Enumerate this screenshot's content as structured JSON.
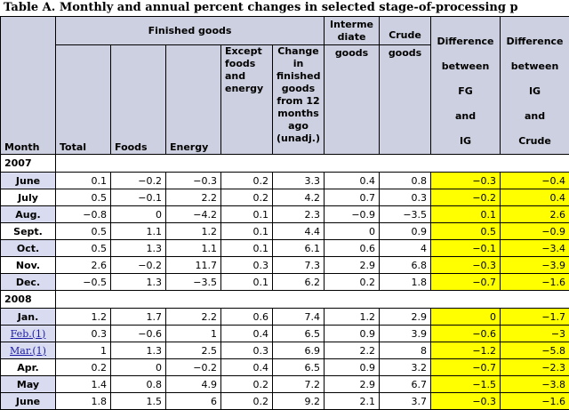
{
  "title": "Table A. Monthly and annual percent changes in selected stage-of-processing p",
  "headers": {
    "month": "Month",
    "finished_goods_group": "Finished goods",
    "total": "Total",
    "foods": "Foods",
    "energy": "Energy",
    "except": "Except foods and energy",
    "change12": "Change in finished goods from 12 months ago (unadj.)",
    "intermediate_top": "Interme diate",
    "intermediate_bottom": "goods",
    "crude_top": "Crude",
    "crude_bottom": "goods",
    "diff_fg_ig": [
      "Difference",
      "between",
      "FG",
      "and",
      "IG"
    ],
    "diff_ig_crude": [
      "Difference",
      "between",
      "IG",
      "and",
      "Crude"
    ]
  },
  "sections": [
    {
      "year": "2007",
      "rows": [
        {
          "month": "June",
          "link": false,
          "values": [
            "0.1",
            "−0.2",
            "−0.3",
            "0.2",
            "3.3",
            "0.4",
            "0.8",
            "−0.3",
            "−0.4"
          ]
        },
        {
          "month": "July",
          "link": false,
          "values": [
            "0.5",
            "−0.1",
            "2.2",
            "0.2",
            "4.2",
            "0.7",
            "0.3",
            "−0.2",
            "0.4"
          ]
        },
        {
          "month": "Aug.",
          "link": false,
          "values": [
            "−0.8",
            "0",
            "−4.2",
            "0.1",
            "2.3",
            "−0.9",
            "−3.5",
            "0.1",
            "2.6"
          ]
        },
        {
          "month": "Sept.",
          "link": false,
          "values": [
            "0.5",
            "1.1",
            "1.2",
            "0.1",
            "4.4",
            "0",
            "0.9",
            "0.5",
            "−0.9"
          ]
        },
        {
          "month": "Oct.",
          "link": false,
          "values": [
            "0.5",
            "1.3",
            "1.1",
            "0.1",
            "6.1",
            "0.6",
            "4",
            "−0.1",
            "−3.4"
          ]
        },
        {
          "month": "Nov.",
          "link": false,
          "values": [
            "2.6",
            "−0.2",
            "11.7",
            "0.3",
            "7.3",
            "2.9",
            "6.8",
            "−0.3",
            "−3.9"
          ]
        },
        {
          "month": "Dec.",
          "link": false,
          "values": [
            "−0.5",
            "1.3",
            "−3.5",
            "0.1",
            "6.2",
            "0.2",
            "1.8",
            "−0.7",
            "−1.6"
          ]
        }
      ]
    },
    {
      "year": "2008",
      "rows": [
        {
          "month": "Jan.",
          "link": false,
          "values": [
            "1.2",
            "1.7",
            "2.2",
            "0.6",
            "7.4",
            "1.2",
            "2.9",
            "0",
            "−1.7"
          ]
        },
        {
          "month": "Feb.(1)",
          "link": true,
          "values": [
            "0.3",
            "−0.6",
            "1",
            "0.4",
            "6.5",
            "0.9",
            "3.9",
            "−0.6",
            "−3"
          ]
        },
        {
          "month": "Mar.(1)",
          "link": true,
          "values": [
            "1",
            "1.3",
            "2.5",
            "0.3",
            "6.9",
            "2.2",
            "8",
            "−1.2",
            "−5.8"
          ]
        },
        {
          "month": "Apr.",
          "link": false,
          "values": [
            "0.2",
            "0",
            "−0.2",
            "0.4",
            "6.5",
            "0.9",
            "3.2",
            "−0.7",
            "−2.3"
          ]
        },
        {
          "month": "May",
          "link": false,
          "values": [
            "1.4",
            "0.8",
            "4.9",
            "0.2",
            "7.2",
            "2.9",
            "6.7",
            "−1.5",
            "−3.8"
          ]
        },
        {
          "month": "June",
          "link": false,
          "values": [
            "1.8",
            "1.5",
            "6",
            "0.2",
            "9.2",
            "2.1",
            "3.7",
            "−0.3",
            "−1.6"
          ]
        }
      ]
    }
  ],
  "colors": {
    "header_bg": "#cdd0e0",
    "month_shade": "#d9dcf0",
    "highlight": "#ffff00",
    "link": "#1a1aa6"
  }
}
